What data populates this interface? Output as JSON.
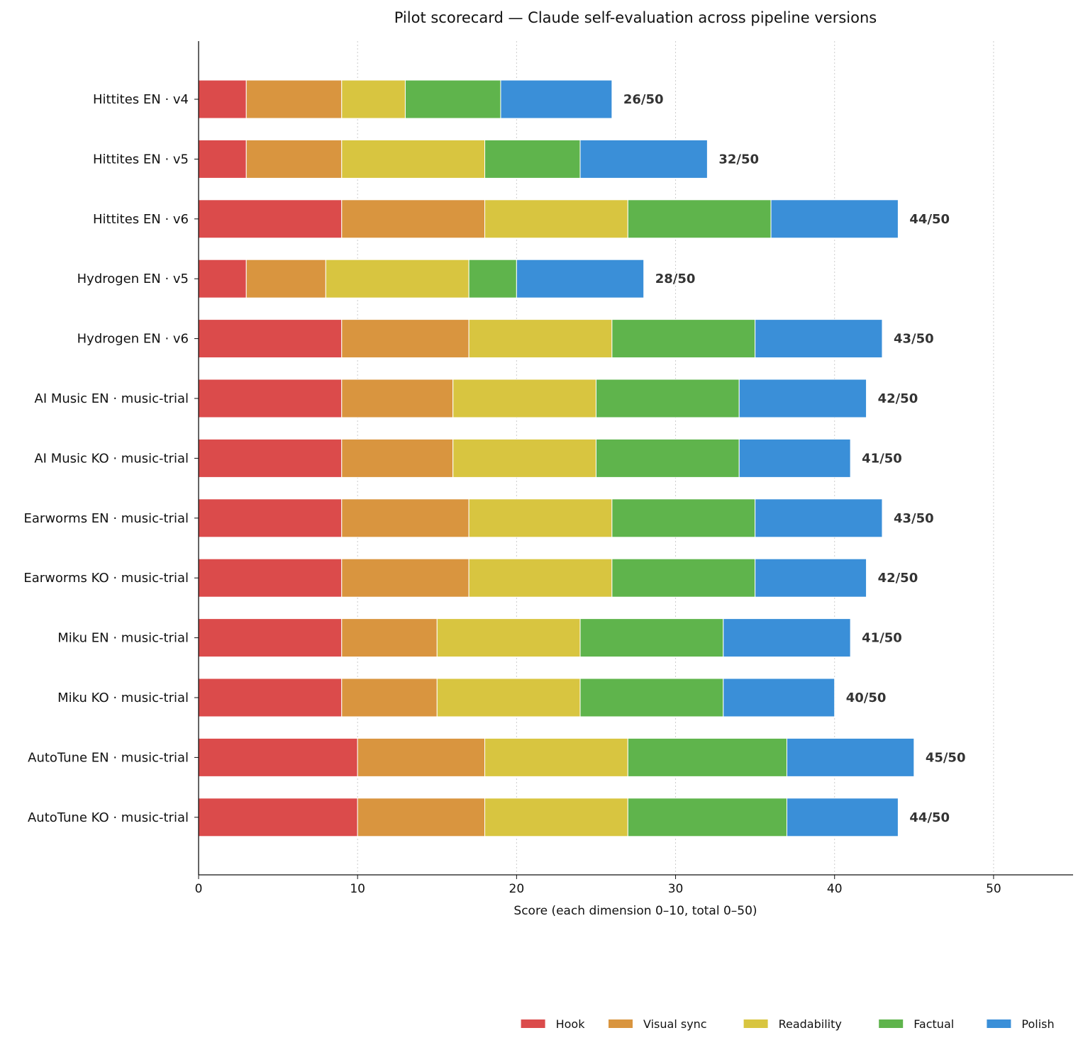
{
  "chart_data": {
    "type": "bar",
    "orientation": "horizontal",
    "stacked": true,
    "title": "Pilot scorecard — Claude self-evaluation across pipeline versions",
    "xlabel": "Score (each dimension 0–10, total 0–50)",
    "ylabel": "",
    "xlim": [
      0,
      55
    ],
    "xticks": [
      0,
      10,
      20,
      30,
      40,
      50
    ],
    "grid": "x, dotted",
    "legend_position": "bottom-right",
    "categories": [
      "Hittites EN · v4",
      "Hittites EN · v5",
      "Hittites EN · v6",
      "Hydrogen EN · v5",
      "Hydrogen EN · v6",
      "AI Music EN · music-trial",
      "AI Music KO · music-trial",
      "Earworms EN · music-trial",
      "Earworms KO · music-trial",
      "Miku EN · music-trial",
      "Miku KO · music-trial",
      "AutoTune EN · music-trial",
      "AutoTune KO · music-trial"
    ],
    "series": [
      {
        "name": "Hook",
        "color": "#db4b4b",
        "values": [
          3,
          3,
          9,
          3,
          9,
          9,
          9,
          9,
          9,
          9,
          9,
          10,
          10
        ]
      },
      {
        "name": "Visual sync",
        "color": "#d9953f",
        "values": [
          6,
          6,
          9,
          5,
          8,
          7,
          7,
          8,
          8,
          6,
          6,
          8,
          8
        ]
      },
      {
        "name": "Readability",
        "color": "#d8c540",
        "values": [
          4,
          9,
          9,
          9,
          9,
          9,
          9,
          9,
          9,
          9,
          9,
          9,
          9
        ]
      },
      {
        "name": "Factual",
        "color": "#5fb44c",
        "values": [
          6,
          6,
          9,
          3,
          9,
          9,
          9,
          9,
          9,
          9,
          9,
          10,
          10
        ]
      },
      {
        "name": "Polish",
        "color": "#3a8fd8",
        "values": [
          7,
          8,
          8,
          8,
          8,
          8,
          7,
          8,
          7,
          8,
          7,
          8,
          7
        ]
      }
    ],
    "totals": [
      "26/50",
      "32/50",
      "44/50",
      "28/50",
      "43/50",
      "42/50",
      "41/50",
      "43/50",
      "42/50",
      "41/50",
      "40/50",
      "45/50",
      "44/50"
    ]
  }
}
